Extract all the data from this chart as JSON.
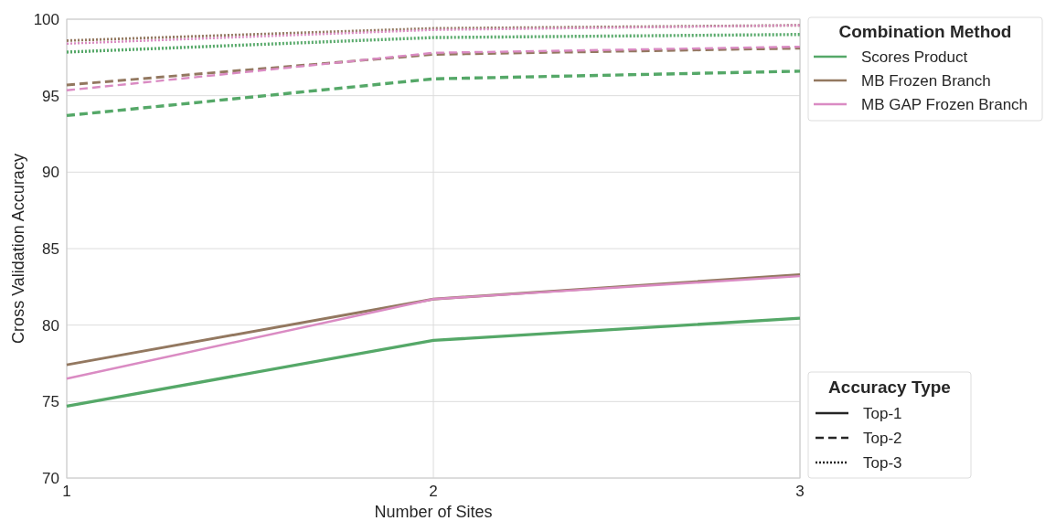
{
  "chart_data": {
    "type": "line",
    "xlabel": "Number of Sites",
    "ylabel": "Cross Validation Accuracy",
    "legend_title": "Combination Method",
    "x": [
      1,
      2,
      3
    ],
    "xlim": [
      1,
      3
    ],
    "xticks": [
      1,
      2,
      3
    ],
    "ylim": [
      70,
      100
    ],
    "yticks": [
      70,
      75,
      80,
      85,
      90,
      95,
      100
    ],
    "grid": true,
    "legend": "top right",
    "annotations": [
      "Accuracy Type",
      "Top-1",
      "Top-2",
      "Top-3"
    ],
    "series": [
      {
        "name": "Scores Product",
        "color": "#55a868",
        "line_style": "solid",
        "values": [
          74.7,
          79.0,
          80.45
        ]
      },
      {
        "name": "MB Frozen Branch",
        "color": "#937860",
        "line_style": "solid",
        "values": [
          77.4,
          81.7,
          83.3
        ]
      },
      {
        "name": "MB GAP Frozen Branch",
        "color": "#da8bc3",
        "line_style": "solid",
        "values": [
          76.5,
          81.7,
          83.2
        ]
      },
      {
        "color": "#55a868",
        "line_style": "dashed",
        "values": [
          93.7,
          96.1,
          96.6
        ]
      },
      {
        "color": "#937860",
        "line_style": "dashed",
        "values": [
          95.7,
          97.7,
          98.1
        ]
      },
      {
        "color": "#da8bc3",
        "line_style": "dashed",
        "values": [
          95.35,
          97.8,
          98.2
        ]
      },
      {
        "color": "#55a868",
        "line_style": "dotted",
        "values": [
          97.85,
          98.8,
          99.0
        ]
      },
      {
        "color": "#937860",
        "line_style": "dotted",
        "values": [
          98.6,
          99.4,
          99.6
        ]
      },
      {
        "color": "#da8bc3",
        "line_style": "dotted",
        "values": [
          98.4,
          99.3,
          99.6
        ]
      }
    ]
  }
}
